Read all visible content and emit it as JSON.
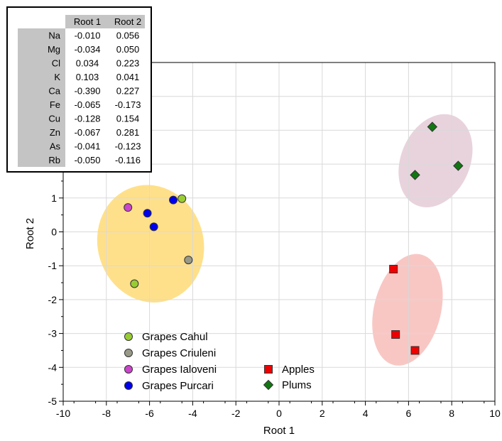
{
  "chart_data": {
    "type": "scatter",
    "xlabel": "Root 1",
    "ylabel": "Root 2",
    "xlim": [
      -10,
      10
    ],
    "ylim": [
      -5,
      5
    ],
    "xticks": [
      -10,
      -8,
      -6,
      -4,
      -2,
      0,
      2,
      4,
      6,
      8,
      10
    ],
    "yticks": [
      -5,
      -4,
      -3,
      -2,
      -1,
      0,
      1,
      2,
      3,
      4,
      5
    ],
    "grid": true,
    "series": [
      {
        "name": "Grapes Cahul",
        "marker": "circle",
        "color": "#99cc33",
        "points": [
          [
            -4.5,
            0.98
          ],
          [
            -6.7,
            -1.53
          ]
        ]
      },
      {
        "name": "Grapes Criuleni",
        "marker": "circle",
        "color": "#999988",
        "points": [
          [
            -4.2,
            -0.83
          ]
        ]
      },
      {
        "name": "Grapes Ialoveni",
        "marker": "circle",
        "color": "#cc44cc",
        "points": [
          [
            -7.0,
            0.72
          ]
        ]
      },
      {
        "name": "Grapes Purcari",
        "marker": "circle",
        "color": "#0000ee",
        "points": [
          [
            -4.9,
            0.94
          ],
          [
            -6.1,
            0.55
          ],
          [
            -5.8,
            0.15
          ]
        ]
      },
      {
        "name": "Apples",
        "marker": "square",
        "color": "#ee0000",
        "points": [
          [
            5.3,
            -1.1
          ],
          [
            5.4,
            -3.03
          ],
          [
            6.3,
            -3.5
          ]
        ]
      },
      {
        "name": "Plums",
        "marker": "diamond",
        "color": "#117711",
        "points": [
          [
            7.1,
            3.1
          ],
          [
            6.3,
            1.68
          ],
          [
            8.3,
            1.95
          ]
        ]
      }
    ],
    "ellipses": [
      {
        "group": "Grapes",
        "color": "#ffe08a",
        "center": [
          -5.95,
          -0.35
        ],
        "rx": 2.45,
        "ry": 1.75,
        "angle_deg": -17
      },
      {
        "group": "Plums",
        "color": "#e8d3dd",
        "center": [
          7.25,
          2.1
        ],
        "rx": 1.6,
        "ry": 1.43,
        "angle_deg": 23
      },
      {
        "group": "Apples",
        "color": "#f8c7c4",
        "center": [
          5.95,
          -2.3
        ],
        "rx": 1.55,
        "ry": 1.68,
        "angle_deg": 14
      }
    ],
    "legend": {
      "left": [
        "Grapes Cahul",
        "Grapes Criuleni",
        "Grapes Ialoveni",
        "Grapes Purcari"
      ],
      "right": [
        "Apples",
        "Plums"
      ]
    },
    "table": {
      "headers": [
        "",
        "Root 1",
        "Root 2"
      ],
      "rows": [
        [
          "Na",
          "-0.010",
          "0.056"
        ],
        [
          "Mg",
          "-0.034",
          "0.050"
        ],
        [
          "Cl",
          "0.034",
          "0.223"
        ],
        [
          "K",
          "0.103",
          "0.041"
        ],
        [
          "Ca",
          "-0.390",
          "0.227"
        ],
        [
          "Fe",
          "-0.065",
          "-0.173"
        ],
        [
          "Cu",
          "-0.128",
          "0.154"
        ],
        [
          "Zn",
          "-0.067",
          "0.281"
        ],
        [
          "As",
          "-0.041",
          "-0.123"
        ],
        [
          "Rb",
          "-0.050",
          "-0.116"
        ]
      ]
    }
  }
}
